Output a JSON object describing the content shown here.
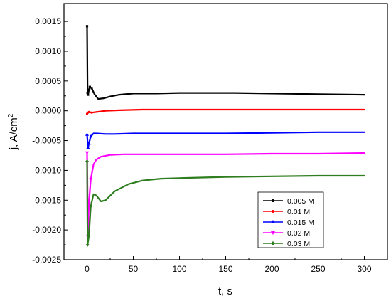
{
  "chart_data": {
    "type": "line",
    "xlabel": "t, s",
    "ylabel": "j, A/cm",
    "ylabel_superscript": "2",
    "xlim": [
      -25,
      325
    ],
    "ylim": [
      -0.0025,
      0.0018
    ],
    "x_ticks": [
      0,
      50,
      100,
      150,
      200,
      250,
      300
    ],
    "x_tick_labels": [
      "0",
      "50",
      "100",
      "150",
      "200",
      "250",
      "300"
    ],
    "y_ticks": [
      -0.0025,
      -0.002,
      -0.0015,
      -0.001,
      -0.0005,
      0.0,
      0.0005,
      0.001,
      0.0015
    ],
    "y_tick_labels": [
      "-0.0025",
      "-0.0020",
      "-0.0015",
      "-0.0010",
      "-0.0005",
      "0.0000",
      "0.0005",
      "0.0010",
      "0.0015"
    ],
    "grid": false,
    "legend_position": "bottom-right",
    "series": [
      {
        "name": "0.005 M",
        "color": "#000000",
        "marker": "square",
        "points": [
          [
            0,
            0.00142
          ],
          [
            0.5,
            0.0003
          ],
          [
            1,
            0.00027
          ],
          [
            2,
            0.00035
          ],
          [
            3,
            0.0004
          ],
          [
            5,
            0.00038
          ],
          [
            8,
            0.00028
          ],
          [
            12,
            0.0002
          ],
          [
            18,
            0.00021
          ],
          [
            25,
            0.00024
          ],
          [
            35,
            0.00027
          ],
          [
            50,
            0.00029
          ],
          [
            75,
            0.00029
          ],
          [
            100,
            0.0003
          ],
          [
            130,
            0.0003
          ],
          [
            160,
            0.0003
          ],
          [
            200,
            0.00029
          ],
          [
            250,
            0.00028
          ],
          [
            300,
            0.00027
          ]
        ]
      },
      {
        "name": "0.01 M",
        "color": "#ff0000",
        "marker": "circle",
        "points": [
          [
            0,
            -5e-05
          ],
          [
            2,
            -2e-05
          ],
          [
            5,
            -3e-05
          ],
          [
            10,
            -2e-05
          ],
          [
            20,
            0.0
          ],
          [
            35,
            1e-05
          ],
          [
            60,
            2e-05
          ],
          [
            100,
            2e-05
          ],
          [
            150,
            2e-05
          ],
          [
            200,
            2e-05
          ],
          [
            250,
            2e-05
          ],
          [
            300,
            2e-05
          ]
        ]
      },
      {
        "name": "0.015 M",
        "color": "#0000ff",
        "marker": "triangle-up",
        "points": [
          [
            0,
            -0.0004
          ],
          [
            1,
            -0.00062
          ],
          [
            2,
            -0.00055
          ],
          [
            4,
            -0.00043
          ],
          [
            7,
            -0.00038
          ],
          [
            10,
            -0.00038
          ],
          [
            20,
            -0.00039
          ],
          [
            30,
            -0.00039
          ],
          [
            50,
            -0.00038
          ],
          [
            100,
            -0.00038
          ],
          [
            150,
            -0.00038
          ],
          [
            200,
            -0.00037
          ],
          [
            250,
            -0.00036
          ],
          [
            300,
            -0.00036
          ]
        ]
      },
      {
        "name": "0.02 M",
        "color": "#ff00ff",
        "marker": "triangle-down",
        "points": [
          [
            0,
            -0.0007
          ],
          [
            1,
            -0.0021
          ],
          [
            2,
            -0.00155
          ],
          [
            4,
            -0.00115
          ],
          [
            7,
            -0.0009
          ],
          [
            10,
            -0.00082
          ],
          [
            15,
            -0.00077
          ],
          [
            25,
            -0.00074
          ],
          [
            40,
            -0.00073
          ],
          [
            60,
            -0.00073
          ],
          [
            100,
            -0.00073
          ],
          [
            150,
            -0.00073
          ],
          [
            200,
            -0.00072
          ],
          [
            250,
            -0.00072
          ],
          [
            300,
            -0.00071
          ]
        ]
      },
      {
        "name": "0.03 M",
        "color": "#2e7d1e",
        "marker": "diamond",
        "points": [
          [
            0,
            -0.00085
          ],
          [
            0.5,
            -0.00225
          ],
          [
            2,
            -0.0021
          ],
          [
            4,
            -0.0016
          ],
          [
            7,
            -0.0014
          ],
          [
            10,
            -0.00142
          ],
          [
            15,
            -0.00152
          ],
          [
            20,
            -0.0015
          ],
          [
            30,
            -0.00135
          ],
          [
            45,
            -0.00123
          ],
          [
            60,
            -0.00117
          ],
          [
            80,
            -0.00114
          ],
          [
            100,
            -0.00113
          ],
          [
            150,
            -0.00111
          ],
          [
            200,
            -0.0011
          ],
          [
            250,
            -0.00109
          ],
          [
            300,
            -0.00109
          ]
        ]
      }
    ]
  }
}
